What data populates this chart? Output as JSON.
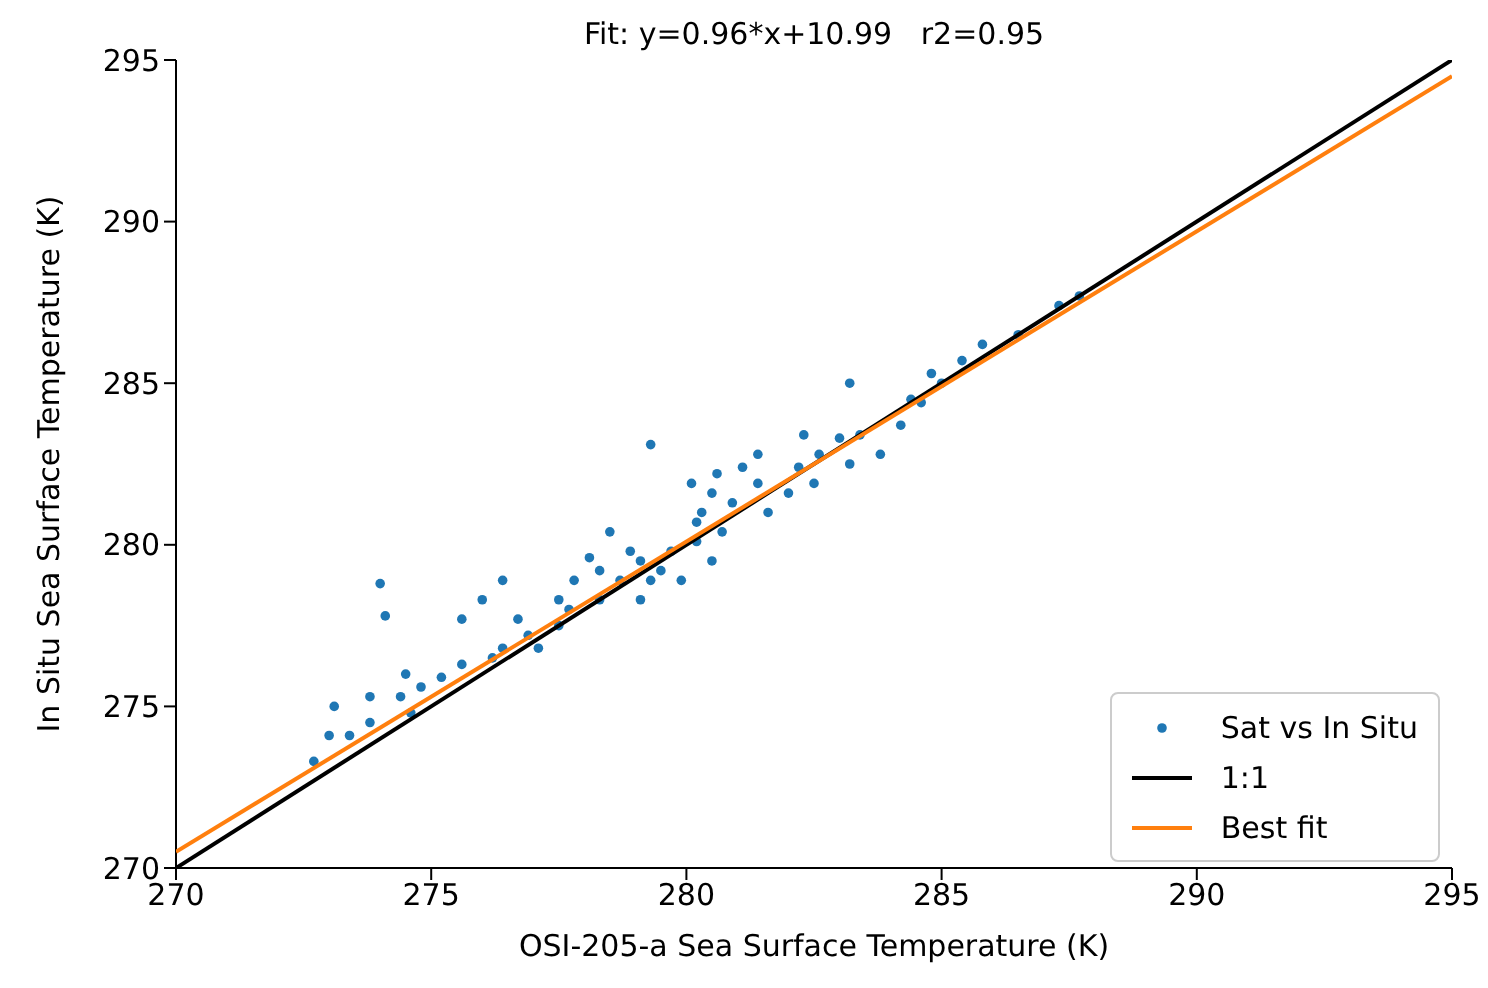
{
  "chart_data": {
    "type": "scatter",
    "title": "Fit: y=0.96*x+10.99   r2=0.95",
    "xlabel": "OSI-205-a Sea Surface Temperature (K)",
    "ylabel": "In Situ Sea Surface Temperature (K)",
    "xlim": [
      270,
      295
    ],
    "ylim": [
      270,
      295
    ],
    "xticks": [
      270,
      275,
      280,
      285,
      290,
      295
    ],
    "yticks": [
      270,
      275,
      280,
      285,
      290,
      295
    ],
    "grid": false,
    "legend": "bottom right",
    "series": [
      {
        "name": "Sat vs In Situ",
        "marker": "circle",
        "color": "#1f77b4",
        "x": [
          272.7,
          273.0,
          273.4,
          273.8,
          273.1,
          273.8,
          274.6,
          274.8,
          275.2,
          275.6,
          276.2,
          274.4,
          274.5,
          274.0,
          274.1,
          275.6,
          276.7,
          276.4,
          276.9,
          277.5,
          277.5,
          276.0,
          276.4,
          277.8,
          278.1,
          277.7,
          278.3,
          278.7,
          279.1,
          279.3,
          279.7,
          279.1,
          280.2,
          280.7,
          280.2,
          279.5,
          280.9,
          281.4,
          282.0,
          282.2,
          282.6,
          283.0,
          283.4,
          281.1,
          281.4,
          279.3,
          282.3,
          282.5,
          283.2,
          283.8,
          284.2,
          284.6,
          283.2,
          285.0,
          284.8,
          285.4,
          285.8,
          286.5,
          287.3,
          287.7,
          284.4,
          279.9,
          280.5,
          280.3,
          281.6,
          280.1,
          280.6,
          280.5,
          278.5,
          278.9,
          277.1,
          278.3
        ],
        "values": [
          273.3,
          274.1,
          274.1,
          274.5,
          275.0,
          275.3,
          274.8,
          275.6,
          275.9,
          276.3,
          276.5,
          275.3,
          276.0,
          278.8,
          277.8,
          277.7,
          277.7,
          276.8,
          277.2,
          277.5,
          278.3,
          278.3,
          278.9,
          278.9,
          279.6,
          278.0,
          278.3,
          278.9,
          279.5,
          278.9,
          279.8,
          278.3,
          280.1,
          280.4,
          280.7,
          279.2,
          281.3,
          281.9,
          281.6,
          282.4,
          282.8,
          283.3,
          283.4,
          282.4,
          282.8,
          283.1,
          283.4,
          281.9,
          282.5,
          282.8,
          283.7,
          284.4,
          285.0,
          285.0,
          285.3,
          285.7,
          286.2,
          286.5,
          287.4,
          287.7,
          284.5,
          278.9,
          279.5,
          281.0,
          281.0,
          281.9,
          282.2,
          281.6,
          280.4,
          279.8,
          276.8,
          279.2
        ]
      },
      {
        "name": "1:1",
        "type": "line",
        "marker": "none",
        "color": "#000000",
        "x": [
          270,
          295
        ],
        "values": [
          270,
          295
        ]
      },
      {
        "name": "Best fit",
        "type": "line",
        "marker": "none",
        "color": "#ff7f0e",
        "x": [
          270,
          295
        ],
        "values": [
          270.5,
          294.5
        ]
      }
    ]
  }
}
